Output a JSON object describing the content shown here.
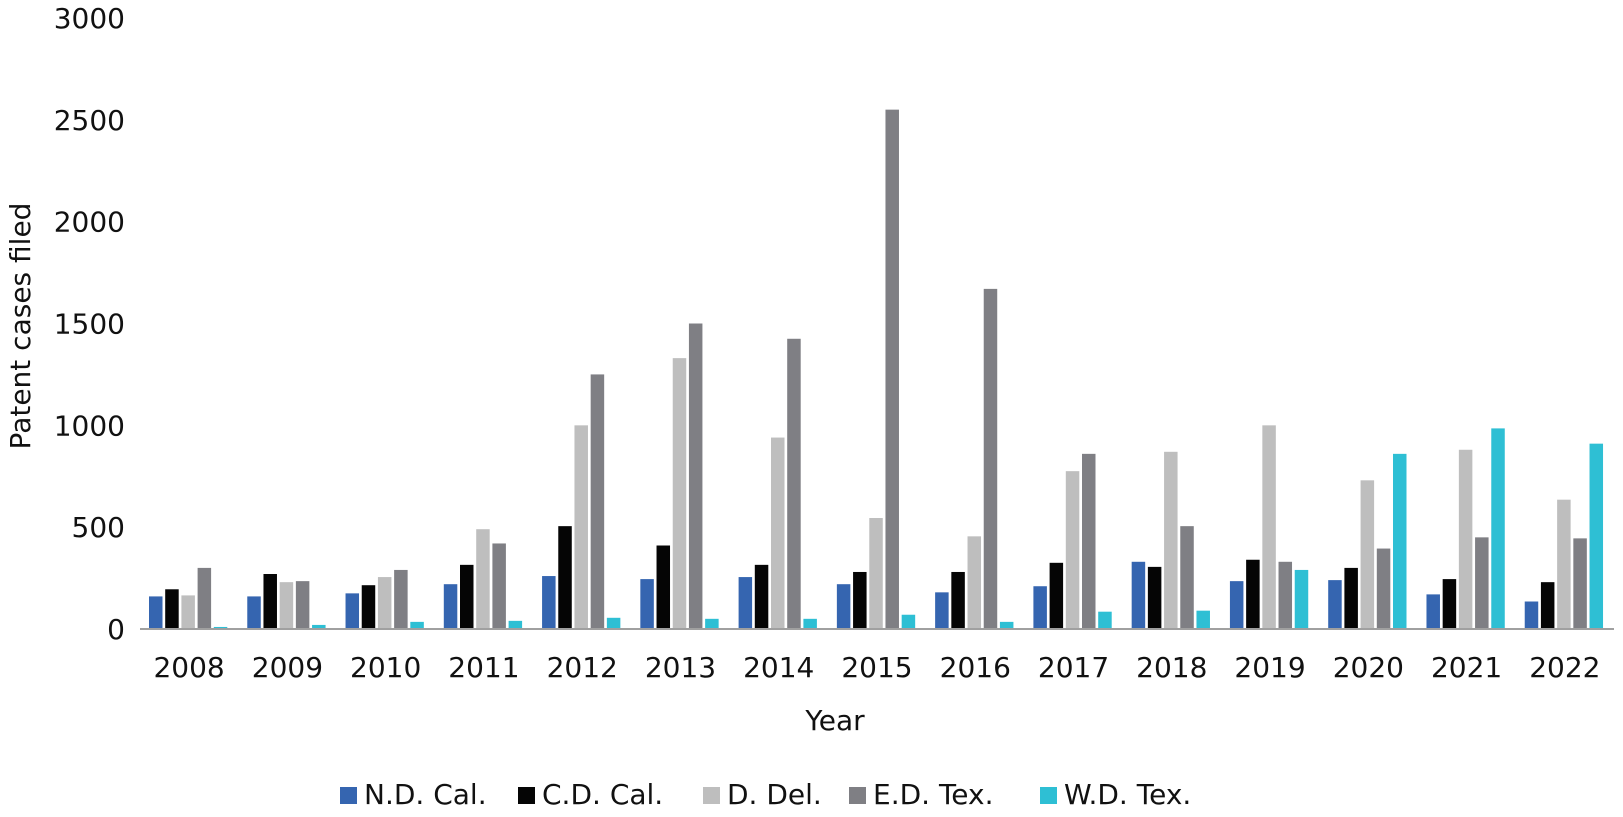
{
  "chart_data": {
    "type": "bar",
    "title": "",
    "xlabel": "Year",
    "ylabel": "Patent cases filed",
    "ylim": [
      0,
      3000
    ],
    "yticks": [
      "0",
      "500",
      "1000",
      "1500",
      "2000",
      "2500",
      "3000"
    ],
    "grid": false,
    "legend_position": "bottom",
    "categories": [
      "2008",
      "2009",
      "2010",
      "2011",
      "2012",
      "2013",
      "2014",
      "2015",
      "2016",
      "2017",
      "2018",
      "2019",
      "2020",
      "2021",
      "2022"
    ],
    "series": [
      {
        "name": "N.D. Cal.",
        "color": "#3565b0",
        "values": [
          160,
          160,
          175,
          220,
          260,
          245,
          255,
          220,
          180,
          210,
          330,
          235,
          240,
          170,
          135
        ]
      },
      {
        "name": "C.D. Cal.",
        "color": "#050505",
        "values": [
          195,
          270,
          215,
          315,
          505,
          410,
          315,
          280,
          280,
          325,
          305,
          340,
          300,
          245,
          230
        ]
      },
      {
        "name": "D. Del.",
        "color": "#bebebe",
        "values": [
          165,
          230,
          255,
          490,
          1000,
          1330,
          940,
          545,
          455,
          775,
          870,
          1000,
          730,
          880,
          635
        ]
      },
      {
        "name": "E.D. Tex.",
        "color": "#7f7f84",
        "values": [
          300,
          235,
          290,
          420,
          1250,
          1500,
          1425,
          2550,
          1670,
          860,
          505,
          330,
          395,
          450,
          445
        ]
      },
      {
        "name": "W.D. Tex.",
        "color": "#2ebfd4",
        "values": [
          10,
          20,
          35,
          40,
          55,
          50,
          50,
          70,
          35,
          85,
          90,
          290,
          860,
          985,
          910
        ]
      }
    ]
  }
}
